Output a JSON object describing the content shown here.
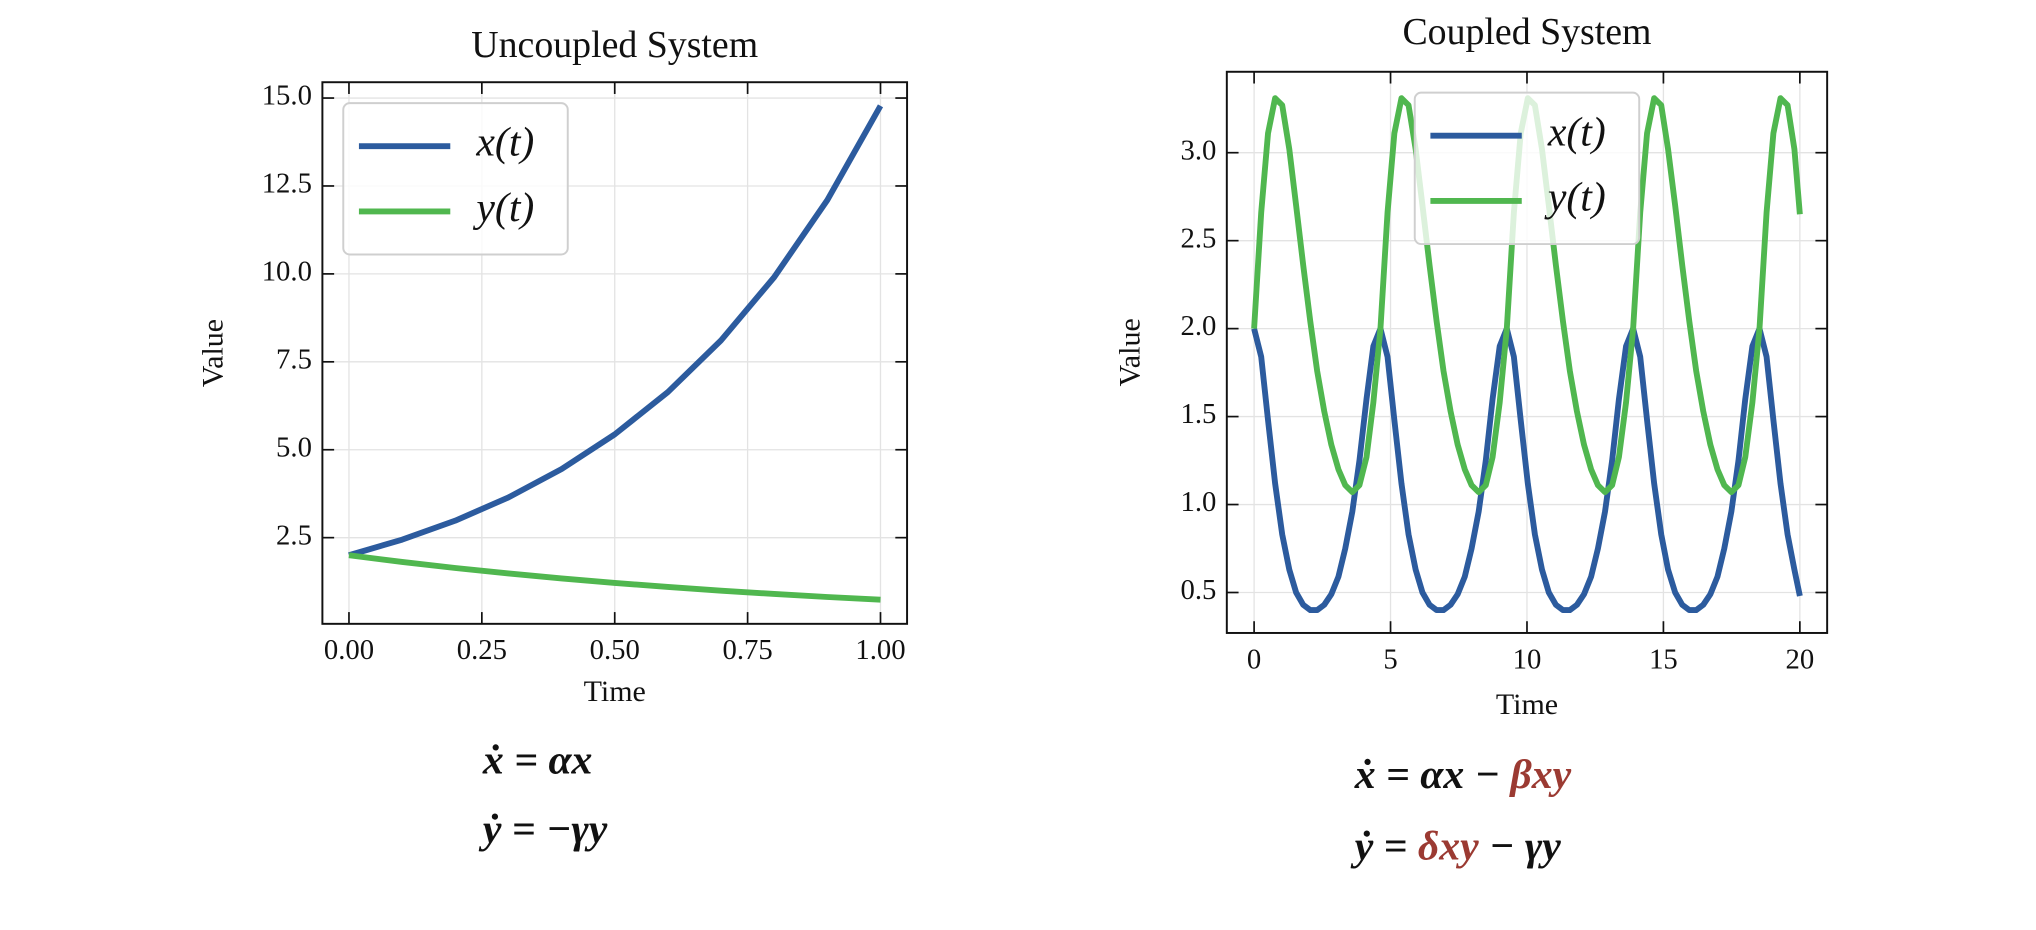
{
  "chart_data": [
    {
      "type": "line",
      "title": "Uncoupled System",
      "xlabel": "Time",
      "ylabel": "Value",
      "x": [
        0,
        0.1,
        0.2,
        0.3,
        0.4,
        0.5,
        0.6,
        0.7,
        0.8,
        0.9,
        1.0
      ],
      "series": [
        {
          "name": "x(t)",
          "color": "#2c5b9e",
          "values": [
            2,
            2.443,
            2.984,
            3.644,
            4.451,
            5.437,
            6.64,
            8.11,
            9.906,
            12.099,
            14.778
          ]
        },
        {
          "name": "y(t)",
          "color": "#50b74f",
          "values": [
            2,
            1.81,
            1.637,
            1.482,
            1.341,
            1.213,
            1.098,
            0.993,
            0.899,
            0.813,
            0.736
          ]
        }
      ],
      "xlim": [
        -0.05,
        1.05
      ],
      "xticks": [
        {
          "value": 0,
          "label": "0.00"
        },
        0.25,
        {
          "value": 0.5,
          "label": "0.50"
        },
        0.75,
        {
          "value": 1,
          "label": "1.00"
        }
      ],
      "ylim": [
        0.05,
        15.45
      ],
      "yticks": [
        2.5,
        {
          "value": 5,
          "label": "5.0"
        },
        7.5,
        {
          "value": 10,
          "label": "10.0"
        },
        12.5,
        {
          "value": 15,
          "label": "15.0"
        }
      ],
      "grid": true,
      "legend": "upper left",
      "annotations": [
        [
          "ẋ = αx"
        ],
        [
          "ẏ = −γy"
        ]
      ],
      "highlight_color": "#9b3a32"
    },
    {
      "type": "line",
      "title": "Coupled System",
      "xlabel": "Time",
      "ylabel": "Value",
      "x": [
        0,
        0.26,
        0.51,
        0.77,
        1.03,
        1.29,
        1.54,
        1.8,
        2.06,
        2.31,
        2.57,
        2.83,
        3.09,
        3.34,
        3.6,
        3.86,
        4.12,
        4.37,
        4.63,
        4.89,
        5.14,
        5.4,
        5.66,
        5.92,
        6.17,
        6.43,
        6.69,
        6.94,
        7.2,
        7.46,
        7.72,
        7.97,
        8.23,
        8.49,
        8.74,
        9.0,
        9.26,
        9.52,
        9.77,
        10.03,
        10.29,
        10.55,
        10.8,
        11.06,
        11.32,
        11.57,
        11.83,
        12.09,
        12.35,
        12.6,
        12.86,
        13.12,
        13.37,
        13.63,
        13.89,
        14.15,
        14.4,
        14.66,
        14.92,
        15.17,
        15.43,
        15.69,
        15.95,
        16.2,
        16.46,
        16.72,
        16.98,
        17.23,
        17.49,
        17.75,
        18.0,
        18.26,
        18.52,
        18.78,
        19.03,
        19.29,
        19.55,
        19.8,
        20.0
      ],
      "series": [
        {
          "name": "x(t)",
          "color": "#2c5b9e",
          "values": [
            2.0,
            1.84,
            1.48,
            1.12,
            0.83,
            0.63,
            0.5,
            0.43,
            0.4,
            0.4,
            0.43,
            0.49,
            0.59,
            0.75,
            0.96,
            1.25,
            1.6,
            1.9,
            2.0,
            1.84,
            1.48,
            1.12,
            0.83,
            0.63,
            0.5,
            0.43,
            0.4,
            0.4,
            0.43,
            0.49,
            0.59,
            0.75,
            0.96,
            1.25,
            1.6,
            1.9,
            2.0,
            1.84,
            1.48,
            1.12,
            0.83,
            0.63,
            0.5,
            0.43,
            0.4,
            0.4,
            0.43,
            0.49,
            0.59,
            0.75,
            0.96,
            1.25,
            1.6,
            1.9,
            2.0,
            1.84,
            1.48,
            1.12,
            0.83,
            0.63,
            0.5,
            0.43,
            0.4,
            0.4,
            0.43,
            0.49,
            0.59,
            0.75,
            0.96,
            1.25,
            1.6,
            1.9,
            2.0,
            1.84,
            1.48,
            1.12,
            0.83,
            0.63,
            0.48
          ]
        },
        {
          "name": "y(t)",
          "color": "#50b74f",
          "values": [
            2.0,
            2.66,
            3.11,
            3.31,
            3.27,
            3.02,
            2.7,
            2.36,
            2.04,
            1.76,
            1.53,
            1.34,
            1.2,
            1.11,
            1.07,
            1.11,
            1.27,
            1.58,
            2.0,
            2.66,
            3.11,
            3.31,
            3.27,
            3.02,
            2.7,
            2.36,
            2.04,
            1.76,
            1.53,
            1.34,
            1.2,
            1.11,
            1.07,
            1.11,
            1.27,
            1.58,
            2.0,
            2.66,
            3.11,
            3.31,
            3.27,
            3.02,
            2.7,
            2.36,
            2.04,
            1.76,
            1.53,
            1.34,
            1.2,
            1.11,
            1.07,
            1.11,
            1.27,
            1.58,
            2.0,
            2.66,
            3.11,
            3.31,
            3.27,
            3.02,
            2.7,
            2.36,
            2.04,
            1.76,
            1.53,
            1.34,
            1.2,
            1.11,
            1.07,
            1.11,
            1.27,
            1.58,
            2.0,
            2.66,
            3.11,
            3.31,
            3.27,
            3.02,
            2.65
          ]
        }
      ],
      "xlim": [
        -1,
        21
      ],
      "xticks": [
        0,
        5,
        10,
        15,
        20
      ],
      "ylim": [
        0.27,
        3.46
      ],
      "yticks": [
        0.5,
        {
          "value": 1,
          "label": "1.0"
        },
        1.5,
        {
          "value": 2,
          "label": "2.0"
        },
        2.5,
        {
          "value": 3,
          "label": "3.0"
        }
      ],
      "grid": true,
      "legend": "upper center",
      "annotations": [
        [
          "ẋ = αx − ",
          "βxy"
        ],
        [
          "ẏ = ",
          "δxy",
          " − γy"
        ]
      ],
      "highlight_color": "#9b3a32"
    }
  ]
}
